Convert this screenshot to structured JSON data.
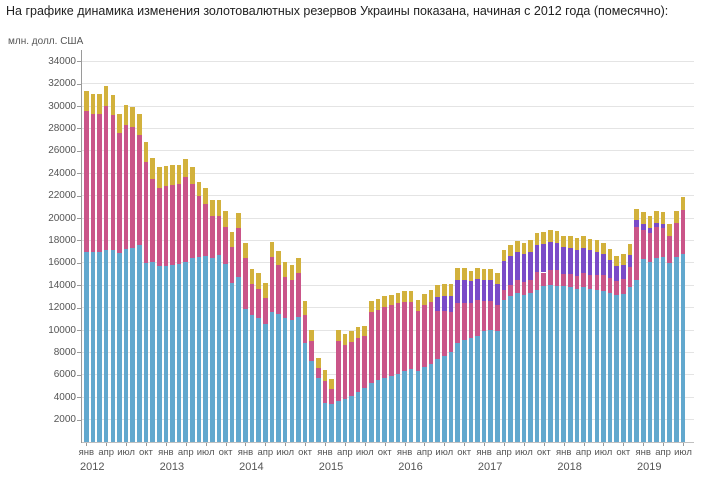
{
  "page": {
    "caption": "На графике динамика изменения золотовалютных резервов Украины показана, начиная с 2012 года (помесячно):"
  },
  "chart_data": {
    "type": "bar",
    "stacked": true,
    "title": "",
    "ylabel": "млн. долл. США",
    "xlabel": "",
    "grid": true,
    "legend": "none",
    "y_max": 35000,
    "y_ticks": [
      2000,
      4000,
      6000,
      8000,
      10000,
      12000,
      14000,
      16000,
      18000,
      20000,
      22000,
      24000,
      26000,
      28000,
      30000,
      32000,
      34000
    ],
    "quarter_labels": [
      "янв",
      "апр",
      "июл",
      "окт"
    ],
    "years": [
      {
        "label": "2012",
        "months": 12
      },
      {
        "label": "2013",
        "months": 12
      },
      {
        "label": "2014",
        "months": 12
      },
      {
        "label": "2015",
        "months": 12
      },
      {
        "label": "2016",
        "months": 12
      },
      {
        "label": "2017",
        "months": 12
      },
      {
        "label": "2018",
        "months": 12
      },
      {
        "label": "2019",
        "months": 7
      }
    ],
    "series": [
      {
        "name": "blue-segment",
        "color": "#62a8ce",
        "values": [
          17000,
          17000,
          17000,
          17100,
          17100,
          16900,
          17200,
          17300,
          17550,
          16000,
          16100,
          15700,
          15700,
          15800,
          15900,
          16100,
          16400,
          16500,
          16600,
          16400,
          16700,
          15900,
          14200,
          14700,
          11900,
          11300,
          11100,
          10500,
          11600,
          11400,
          11100,
          10900,
          11200,
          8800,
          7200,
          5700,
          3500,
          3400,
          3700,
          3800,
          4100,
          4500,
          4800,
          5300,
          5500,
          5700,
          5900,
          6100,
          6300,
          6500,
          6300,
          6700,
          7000,
          7400,
          7700,
          8000,
          8800,
          9100,
          9330,
          9500,
          9900,
          10000,
          9900,
          12700,
          13000,
          13300,
          13100,
          13300,
          13600,
          13900,
          14000,
          13900,
          13900,
          13800,
          13700,
          13800,
          13700,
          13600,
          13500,
          13300,
          13100,
          13200,
          13800,
          14500,
          16300,
          16100,
          16400,
          16500,
          16000,
          16500,
          16800
        ]
      },
      {
        "name": "pink-segment",
        "color": "#ca5589",
        "values": [
          12564,
          12253,
          12247,
          12861,
          12072,
          10667,
          11112,
          10850,
          9854,
          8966,
          7371,
          6946,
          7149,
          7152,
          7126,
          7590,
          6634,
          5443,
          4666,
          3752,
          3489,
          3280,
          3241,
          4416,
          4536,
          2782,
          2579,
          2376,
          4941,
          4364,
          3618,
          3568,
          3928,
          2536,
          1786,
          883,
          1990,
          1325,
          5300,
          4837,
          4838,
          4804,
          4626,
          6303,
          6293,
          6329,
          6298,
          6270,
          6192,
          5984,
          5441,
          5540,
          5533,
          4339,
          4002,
          3609,
          3595,
          3345,
          3076,
          3199,
          2647,
          2552,
          2311,
          876,
          1047,
          1135,
          1181,
          1207,
          1539,
          1236,
          1394,
          1418,
          1069,
          1186,
          1088,
          1258,
          1189,
          1300,
          1370,
          1372,
          1290,
          1373,
          1826,
          4700,
          2657,
          2566,
          2776,
          2621,
          2385,
          3043,
          3891
        ]
      },
      {
        "name": "purple-segment",
        "color": "#7a4bc8",
        "values": [
          0,
          0,
          0,
          0,
          0,
          0,
          0,
          0,
          0,
          0,
          0,
          0,
          0,
          0,
          0,
          0,
          0,
          0,
          0,
          0,
          0,
          0,
          0,
          0,
          0,
          0,
          0,
          0,
          0,
          0,
          0,
          0,
          0,
          0,
          0,
          0,
          0,
          0,
          0,
          0,
          0,
          0,
          0,
          0,
          0,
          0,
          0,
          0,
          0,
          0,
          0,
          0,
          0,
          1200,
          1300,
          1400,
          2100,
          2050,
          1950,
          1900,
          1950,
          1930,
          1920,
          2600,
          2560,
          2540,
          2500,
          2480,
          2450,
          2560,
          2500,
          2450,
          2400,
          2380,
          2350,
          2300,
          2250,
          2100,
          1900,
          1600,
          1300,
          1200,
          1100,
          600,
          500,
          450,
          400,
          350,
          0,
          0,
          0
        ]
      },
      {
        "name": "gold-segment",
        "color": "#d2b13c",
        "values": [
          1800,
          1800,
          1800,
          1800,
          1800,
          1750,
          1750,
          1800,
          1850,
          1850,
          1880,
          1900,
          1800,
          1750,
          1700,
          1550,
          1500,
          1300,
          1450,
          1500,
          1450,
          1450,
          1350,
          1300,
          1370,
          1380,
          1400,
          1350,
          1350,
          1300,
          1350,
          1350,
          1300,
          1250,
          980,
          950,
          930,
          900,
          970,
          990,
          980,
          960,
          950,
          1000,
          980,
          970,
          950,
          930,
          950,
          1000,
          980,
          1000,
          1000,
          1050,
          1080,
          1080,
          1060,
          1020,
          950,
          940,
          950,
          980,
          990,
          1000,
          1010,
          1000,
          1010,
          1050,
          1050,
          1030,
          1030,
          1040,
          1070,
          1060,
          1050,
          1050,
          1030,
          1000,
          980,
          960,
          950,
          970,
          980,
          1020,
          1050,
          1060,
          1050,
          1050,
          1040,
          1100,
          1150
        ]
      }
    ]
  }
}
